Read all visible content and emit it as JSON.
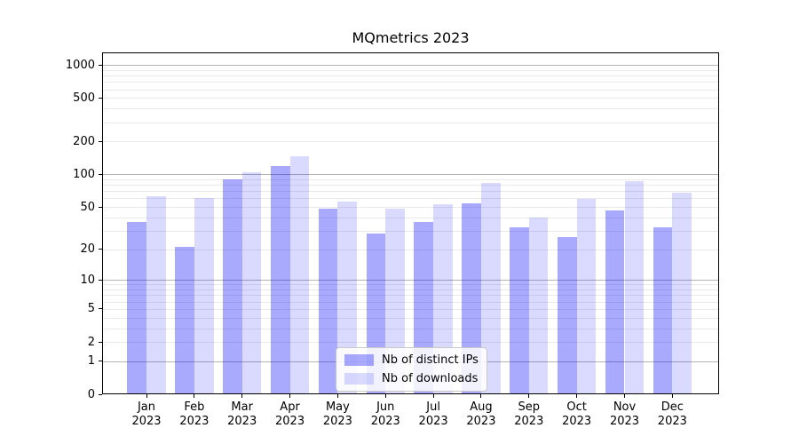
{
  "chart_data": {
    "type": "bar",
    "title": "MQmetrics 2023",
    "year_label": "2023",
    "months": [
      "Jan",
      "Feb",
      "Mar",
      "Apr",
      "May",
      "Jun",
      "Jul",
      "Aug",
      "Sep",
      "Oct",
      "Nov",
      "Dec"
    ],
    "series": [
      {
        "name": "Nb of distinct IPs",
        "color": "rgba(10,10,250,0.35)",
        "values": [
          36,
          21,
          90,
          120,
          48,
          28,
          36,
          54,
          32,
          26,
          46,
          32
        ]
      },
      {
        "name": "Nb of downloads",
        "color": "rgba(10,10,250,0.15)",
        "values": [
          63,
          60,
          105,
          148,
          56,
          48,
          53,
          83,
          40,
          59,
          87,
          68
        ]
      }
    ],
    "xlabel": "",
    "ylabel": "",
    "y_axis": {
      "scale": "log1p",
      "tick_labels": [
        "0",
        "1",
        "2",
        "5",
        "10",
        "20",
        "50",
        "100",
        "200",
        "500",
        "1000"
      ],
      "tick_values": [
        0,
        1,
        2,
        5,
        10,
        20,
        50,
        100,
        200,
        500,
        1000
      ],
      "major_gridline_values": [
        1,
        10,
        100,
        1000
      ],
      "minor_gridline_values": [
        2,
        3,
        4,
        5,
        6,
        7,
        8,
        9,
        20,
        30,
        40,
        50,
        60,
        70,
        80,
        90,
        200,
        300,
        400,
        500,
        600,
        700,
        800,
        900
      ],
      "ylim": [
        0,
        1305
      ]
    },
    "grid": true,
    "legend_position": "bottom-center"
  },
  "colors": {
    "axis": "#000000",
    "major_grid": "#b3b3b3",
    "minor_grid": "#e9e9e9",
    "background": "#ffffff"
  }
}
